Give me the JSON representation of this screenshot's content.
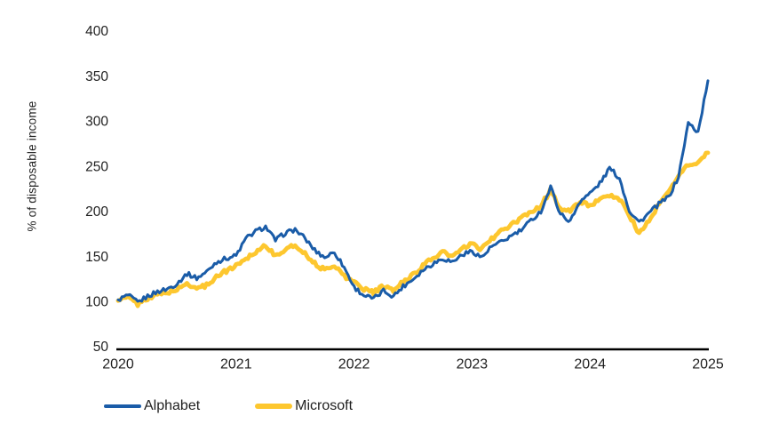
{
  "chart_data": {
    "type": "line",
    "title": "",
    "xlabel": "",
    "ylabel": "% of disposable income",
    "xlim": [
      2020,
      2025
    ],
    "ylim": [
      50,
      400
    ],
    "x_ticks": [
      2020,
      2021,
      2022,
      2023,
      2024,
      2025
    ],
    "y_ticks": [
      50,
      100,
      150,
      200,
      250,
      300,
      350,
      400
    ],
    "grid": false,
    "legend_position": "bottom-left",
    "background_color": "#ffffff",
    "axis_color": "#000000",
    "text_color": "#1f1f1f",
    "x_start_year": 2020,
    "x_step": "monthly",
    "series": [
      {
        "name": "Alphabet",
        "color": "#1a5ca8",
        "stroke_width": 3,
        "noise": 5,
        "values": [
          102,
          107,
          99,
          106,
          111,
          114,
          120,
          131,
          126,
          133,
          144,
          148,
          151,
          170,
          178,
          183,
          168,
          176,
          180,
          170,
          157,
          149,
          155,
          138,
          116,
          107,
          103,
          112,
          106,
          117,
          125,
          135,
          142,
          148,
          144,
          152,
          156,
          149,
          161,
          166,
          173,
          179,
          190,
          200,
          227,
          197,
          189,
          212,
          220,
          231,
          248,
          237,
          201,
          188,
          198,
          208,
          216,
          238,
          298,
          288,
          345
        ]
      },
      {
        "name": "Microsoft",
        "color": "#fdc72f",
        "stroke_width": 4.8,
        "noise": 4.5,
        "values": [
          101,
          105,
          97,
          104,
          108,
          110,
          113,
          120,
          115,
          118,
          128,
          134,
          140,
          148,
          155,
          163,
          150,
          158,
          162,
          154,
          142,
          135,
          141,
          128,
          122,
          114,
          110,
          117,
          112,
          122,
          130,
          140,
          148,
          155,
          150,
          158,
          164,
          158,
          170,
          178,
          185,
          192,
          200,
          206,
          224,
          203,
          200,
          211,
          207,
          212,
          218,
          214,
          196,
          175,
          190,
          207,
          222,
          240,
          252,
          254,
          265
        ]
      }
    ]
  }
}
